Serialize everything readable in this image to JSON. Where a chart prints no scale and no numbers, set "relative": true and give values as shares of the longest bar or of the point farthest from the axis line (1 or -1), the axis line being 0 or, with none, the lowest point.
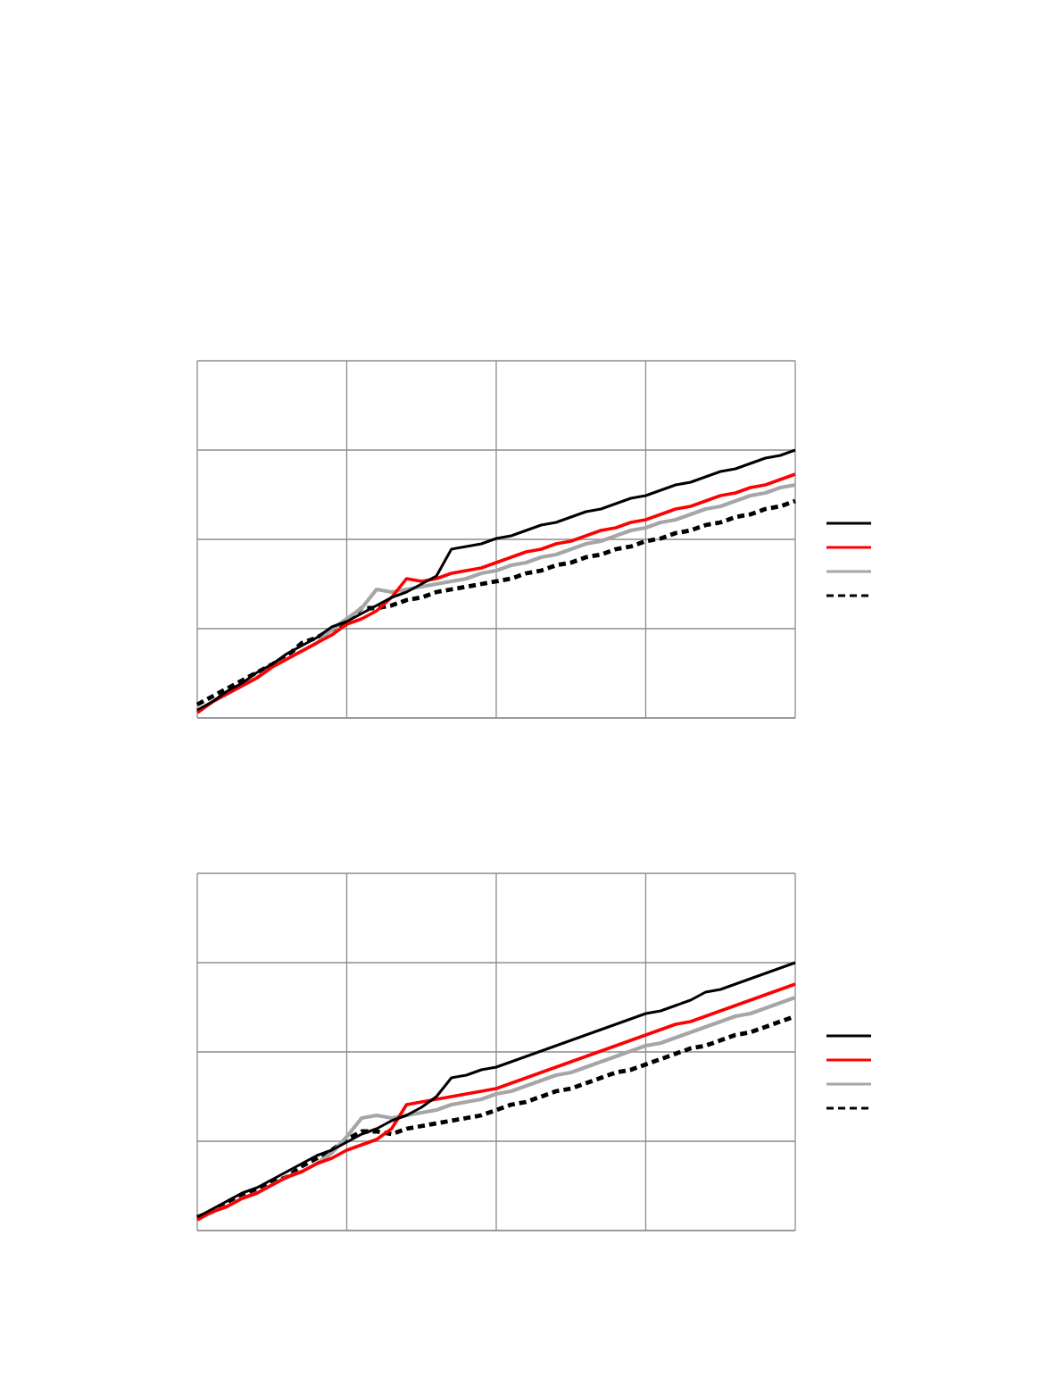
{
  "chart_data": [
    {
      "type": "line",
      "relative": true,
      "grid": true,
      "categories": [
        null,
        null,
        null,
        null,
        null,
        null,
        null,
        null,
        null,
        null,
        null,
        null,
        null,
        null,
        null,
        null,
        null,
        null,
        null,
        null,
        null,
        null,
        null,
        null,
        null,
        null,
        null,
        null,
        null,
        null,
        null,
        null,
        null,
        null,
        null,
        null,
        null,
        null,
        null,
        null,
        null
      ],
      "series": [
        {
          "color": "#000000",
          "line_style": "solid",
          "values": [
            0.03,
            0.06,
            0.1,
            0.13,
            0.17,
            0.2,
            0.24,
            0.27,
            0.3,
            0.34,
            0.36,
            0.39,
            0.42,
            0.45,
            0.47,
            0.5,
            0.53,
            0.63,
            0.64,
            0.65,
            0.67,
            0.68,
            0.7,
            0.72,
            0.73,
            0.75,
            0.77,
            0.78,
            0.8,
            0.82,
            0.83,
            0.85,
            0.87,
            0.88,
            0.9,
            0.92,
            0.93,
            0.95,
            0.97,
            0.98,
            1
          ]
        },
        {
          "color": "#ff0000",
          "line_style": "solid",
          "values": [
            0.02,
            0.06,
            0.09,
            0.12,
            0.15,
            0.19,
            0.22,
            0.25,
            0.28,
            0.31,
            0.35,
            0.37,
            0.4,
            0.45,
            0.52,
            0.51,
            0.52,
            0.54,
            0.55,
            0.56,
            0.58,
            0.6,
            0.62,
            0.63,
            0.65,
            0.66,
            0.68,
            0.7,
            0.71,
            0.73,
            0.74,
            0.76,
            0.78,
            0.79,
            0.81,
            0.83,
            0.84,
            0.86,
            0.87,
            0.89,
            0.91
          ]
        },
        {
          "color": "#a6a6a6",
          "line_style": "solid",
          "values": [
            0.02,
            0.06,
            0.09,
            0.12,
            0.15,
            0.19,
            0.22,
            0.25,
            0.28,
            0.33,
            0.37,
            0.41,
            0.48,
            0.47,
            0.48,
            0.49,
            0.5,
            0.51,
            0.52,
            0.54,
            0.55,
            0.57,
            0.58,
            0.6,
            0.61,
            0.63,
            0.65,
            0.66,
            0.68,
            0.7,
            0.71,
            0.73,
            0.74,
            0.76,
            0.78,
            0.79,
            0.81,
            0.83,
            0.84,
            0.86,
            0.87
          ]
        },
        {
          "color": "#000000",
          "line_style": "dashed",
          "values": [
            0.05,
            0.08,
            0.11,
            0.14,
            0.17,
            0.2,
            0.23,
            0.28,
            0.3,
            0.33,
            0.36,
            0.41,
            0.41,
            0.42,
            0.44,
            0.45,
            0.47,
            0.48,
            0.49,
            0.5,
            0.51,
            0.52,
            0.54,
            0.55,
            0.57,
            0.58,
            0.6,
            0.61,
            0.63,
            0.64,
            0.66,
            0.67,
            0.69,
            0.7,
            0.72,
            0.73,
            0.75,
            0.76,
            0.78,
            0.79,
            0.81
          ]
        }
      ]
    },
    {
      "type": "line",
      "relative": true,
      "grid": true,
      "categories": [
        null,
        null,
        null,
        null,
        null,
        null,
        null,
        null,
        null,
        null,
        null,
        null,
        null,
        null,
        null,
        null,
        null,
        null,
        null,
        null,
        null,
        null,
        null,
        null,
        null,
        null,
        null,
        null,
        null,
        null,
        null,
        null,
        null,
        null,
        null,
        null,
        null,
        null,
        null,
        null,
        null
      ],
      "series": [
        {
          "color": "#000000",
          "line_style": "solid",
          "values": [
            0.05,
            0.08,
            0.11,
            0.14,
            0.16,
            0.19,
            0.22,
            0.25,
            0.28,
            0.3,
            0.33,
            0.36,
            0.38,
            0.41,
            0.43,
            0.46,
            0.5,
            0.57,
            0.58,
            0.6,
            0.61,
            0.63,
            0.65,
            0.67,
            0.69,
            0.71,
            0.73,
            0.75,
            0.77,
            0.79,
            0.81,
            0.82,
            0.84,
            0.86,
            0.89,
            0.9,
            0.92,
            0.94,
            0.96,
            0.98,
            1
          ]
        },
        {
          "color": "#ff0000",
          "line_style": "solid",
          "values": [
            0.04,
            0.07,
            0.09,
            0.12,
            0.14,
            0.17,
            0.2,
            0.22,
            0.25,
            0.27,
            0.3,
            0.32,
            0.34,
            0.38,
            0.47,
            0.48,
            0.49,
            0.5,
            0.51,
            0.52,
            0.53,
            0.55,
            0.57,
            0.59,
            0.61,
            0.63,
            0.65,
            0.67,
            0.69,
            0.71,
            0.73,
            0.75,
            0.77,
            0.78,
            0.8,
            0.82,
            0.84,
            0.86,
            0.88,
            0.9,
            0.92
          ]
        },
        {
          "color": "#a6a6a6",
          "line_style": "solid",
          "values": [
            0.04,
            0.07,
            0.09,
            0.12,
            0.14,
            0.17,
            0.2,
            0.22,
            0.25,
            0.29,
            0.35,
            0.42,
            0.43,
            0.42,
            0.43,
            0.44,
            0.45,
            0.47,
            0.48,
            0.49,
            0.51,
            0.52,
            0.54,
            0.56,
            0.58,
            0.59,
            0.61,
            0.63,
            0.65,
            0.67,
            0.69,
            0.7,
            0.72,
            0.74,
            0.76,
            0.78,
            0.8,
            0.81,
            0.83,
            0.85,
            0.87
          ]
        },
        {
          "color": "#000000",
          "line_style": "dashed",
          "values": [
            0.05,
            0.07,
            0.1,
            0.13,
            0.15,
            0.18,
            0.2,
            0.24,
            0.27,
            0.3,
            0.34,
            0.37,
            0.37,
            0.36,
            0.38,
            0.39,
            0.4,
            0.41,
            0.42,
            0.43,
            0.45,
            0.47,
            0.48,
            0.5,
            0.52,
            0.53,
            0.55,
            0.57,
            0.59,
            0.6,
            0.62,
            0.64,
            0.66,
            0.68,
            0.69,
            0.71,
            0.73,
            0.74,
            0.76,
            0.78,
            0.8
          ]
        }
      ]
    }
  ]
}
